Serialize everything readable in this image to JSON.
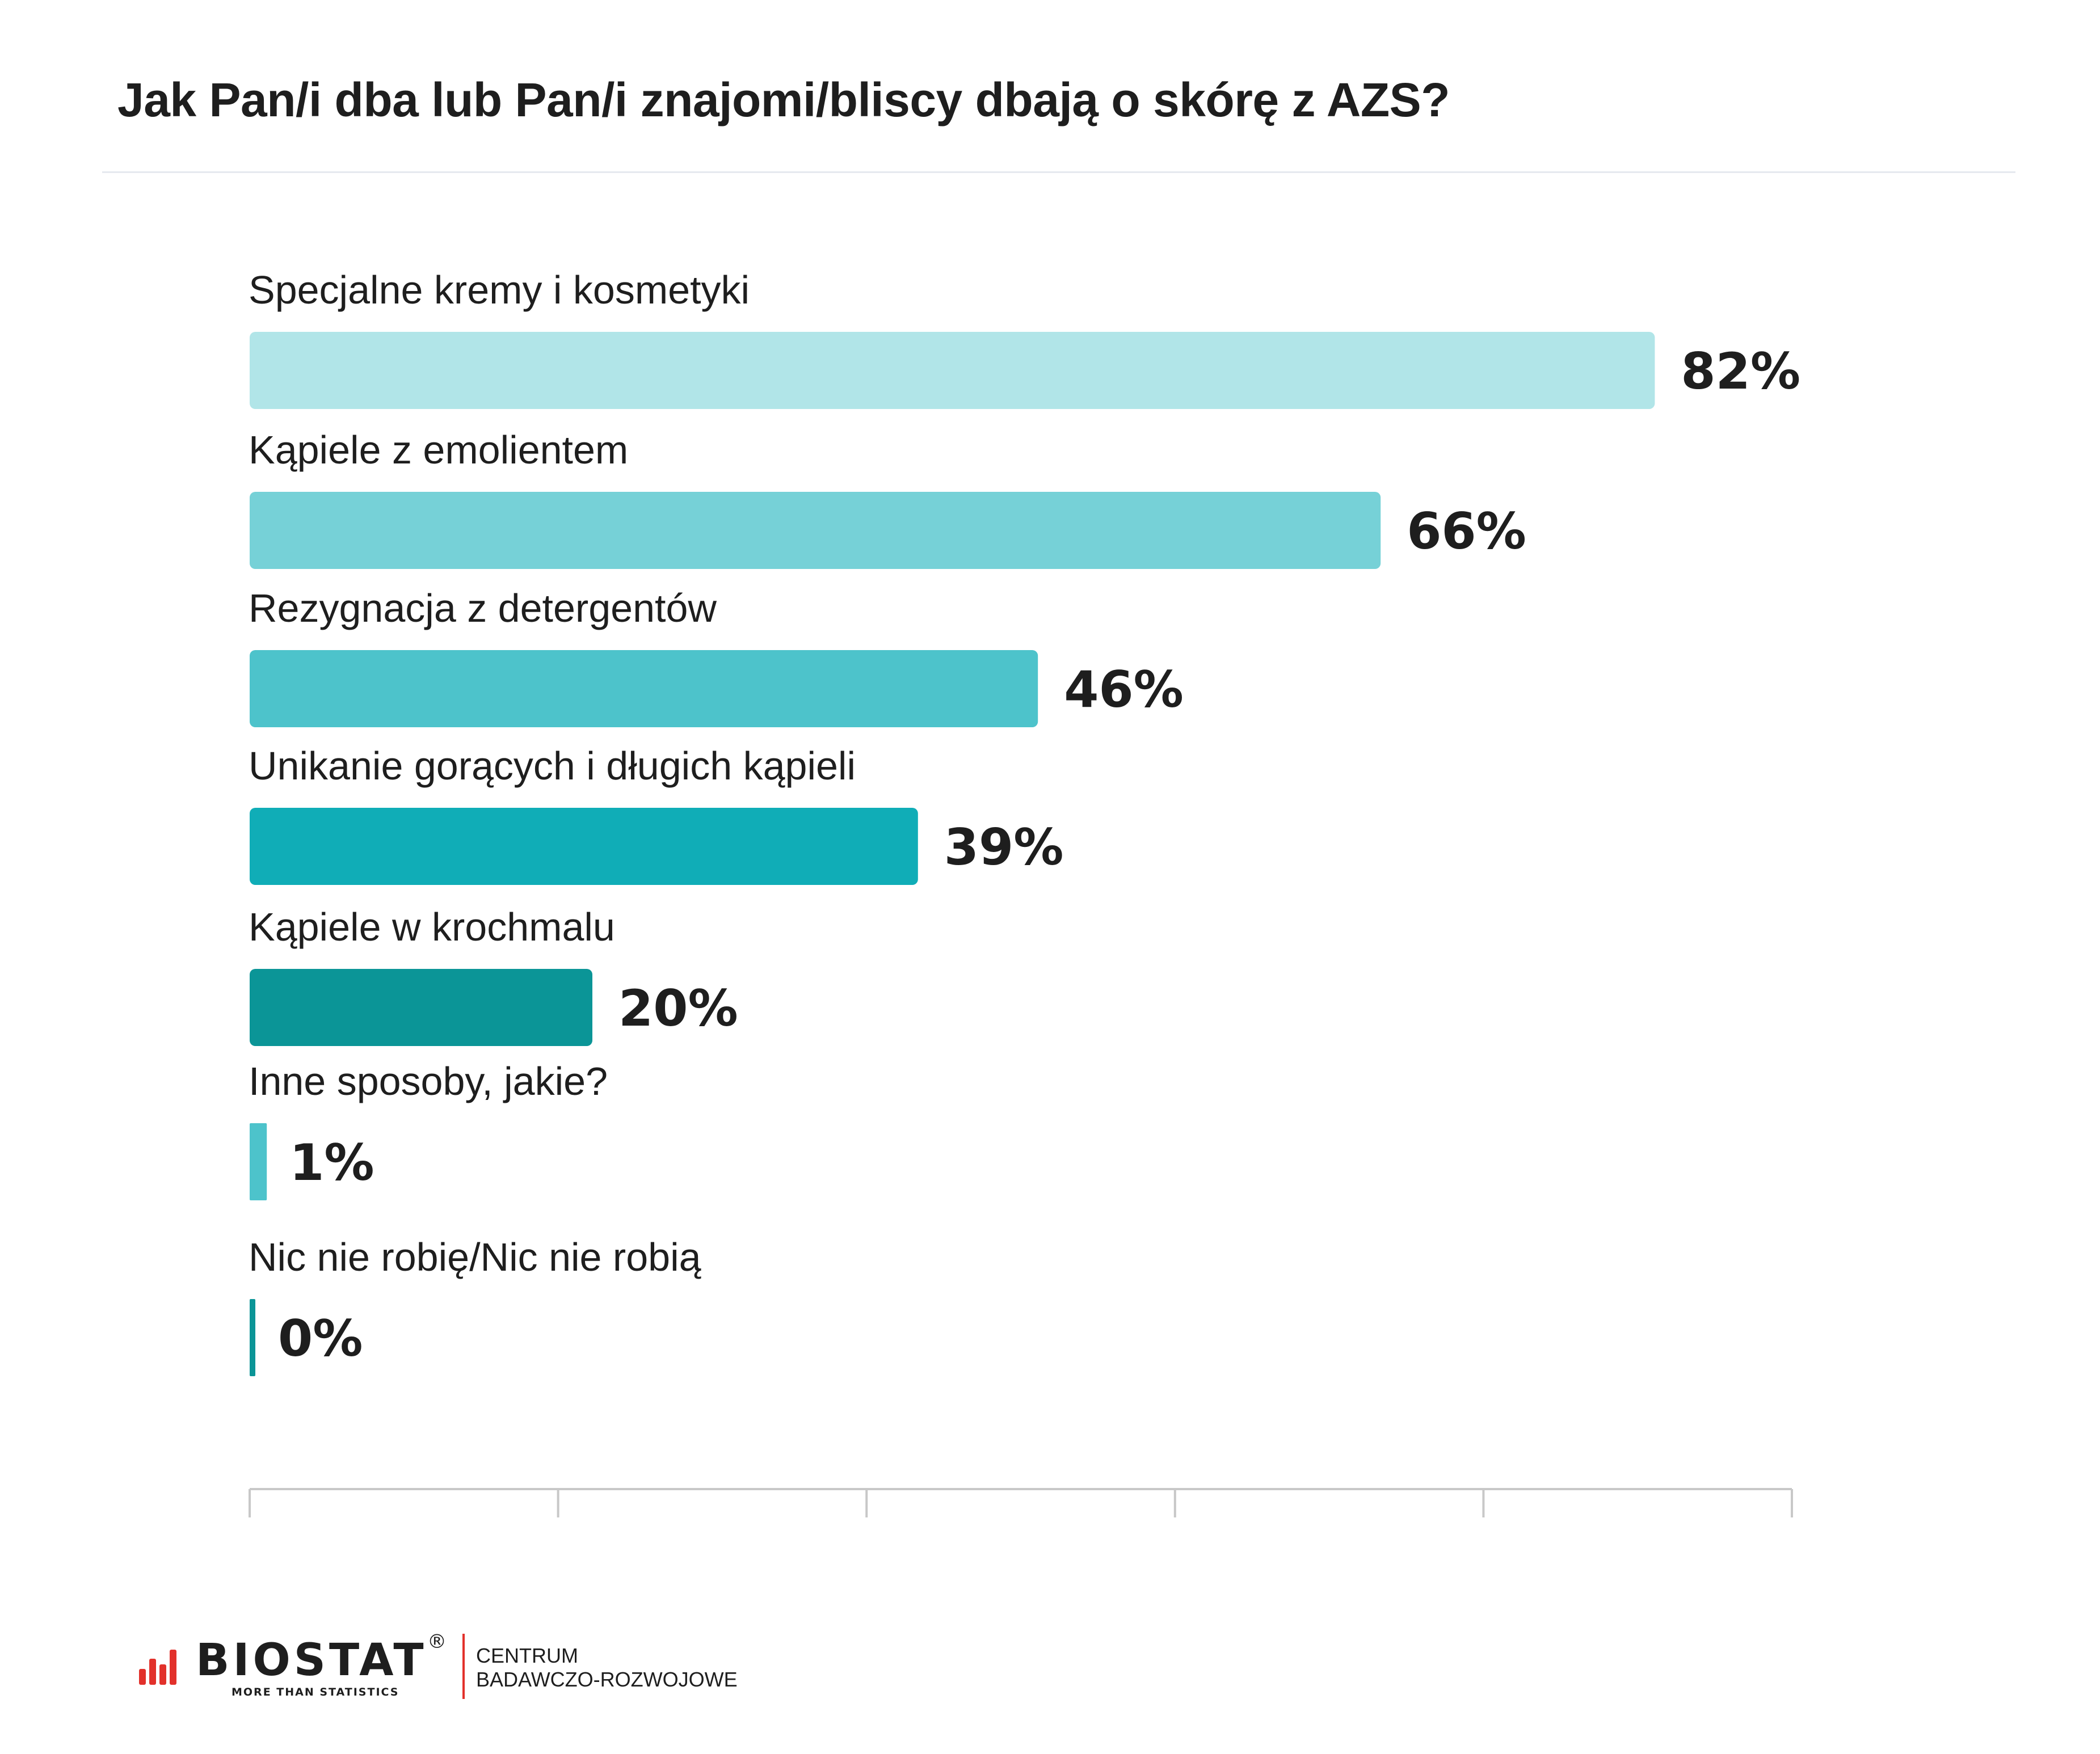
{
  "chart_data": {
    "type": "bar",
    "orientation": "horizontal",
    "title": "Jak Pan/i dba lub Pan/i znajomi/bliscy dbają o skórę z AZS?",
    "categories": [
      "Specjalne kremy i kosmetyki",
      "Kąpiele z emolientem",
      "Rezygnacja z detergentów",
      "Unikanie gorących i długich kąpieli",
      "Kąpiele w krochmalu",
      "Inne sposoby, jakie?",
      "Nic nie robię/Nic nie robią"
    ],
    "values": [
      82,
      66,
      46,
      39,
      20,
      1,
      0
    ],
    "value_labels": [
      "82%",
      "66%",
      "46%",
      "39%",
      "20%",
      "1%",
      "0%"
    ],
    "colors": [
      "#b1e5e8",
      "#76d1d7",
      "#4dc3cb",
      "#10adb7",
      "#0b9597",
      "#4dc3cb",
      "#0b9597"
    ],
    "xlim": [
      0,
      90
    ],
    "grid": false,
    "legend": "none"
  },
  "footer": {
    "brand": "BIOSTAT",
    "registered": "®",
    "tagline": "MORE THAN STATISTICS",
    "center_line1": "CENTRUM",
    "center_line2": "BADAWCZO-ROZWOJOWE",
    "brand_color": "#e2312b"
  }
}
